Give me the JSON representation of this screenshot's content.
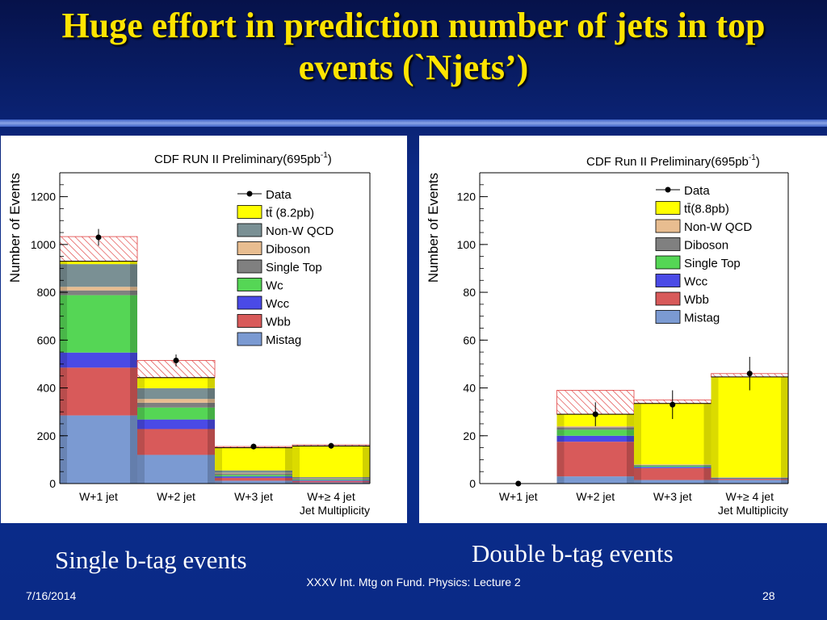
{
  "slide": {
    "title": "Huge effort in prediction number of jets in top events (`Njets’)",
    "caption_left": "Single b-tag events",
    "caption_right": "Double b-tag events",
    "footer_date": "7/16/2014",
    "footer_center": "XXXV Int. Mtg on Fund. Physics: Lecture 2",
    "page_number": "28"
  },
  "chart_data": [
    {
      "type": "bar",
      "stacked": true,
      "title": "CDF RUN II Preliminary(695pb",
      "title_superscript": "-1",
      "title_close": ")",
      "xlabel": "Jet Multiplicity",
      "ylabel": "Number of Events",
      "ylim": [
        0,
        1300
      ],
      "yticks": [
        0,
        200,
        400,
        600,
        800,
        1000,
        1200
      ],
      "categories": [
        "W+1 jet",
        "W+2 jet",
        "W+3 jet",
        "W+≥ 4 jet"
      ],
      "legend_position": "top-right",
      "legend": [
        {
          "label": "Data",
          "kind": "data"
        },
        {
          "label": "tt̄ (8.2pb)",
          "color": "#ffff00"
        },
        {
          "label": "Non-W QCD",
          "color": "#7a9094"
        },
        {
          "label": "Diboson",
          "color": "#e8bd90"
        },
        {
          "label": "Single Top",
          "color": "#808080"
        },
        {
          "label": "Wc",
          "color": "#55d655"
        },
        {
          "label": "Wcc",
          "color": "#4a4ae6"
        },
        {
          "label": "Wbb",
          "color": "#d85a5a"
        },
        {
          "label": "Mistag",
          "color": "#7b9ad2"
        }
      ],
      "series": [
        {
          "name": "Mistag",
          "color": "#7b9ad2",
          "values": [
            285,
            120,
            12,
            5
          ]
        },
        {
          "name": "Wbb",
          "color": "#d85a5a",
          "values": [
            200,
            108,
            12,
            6
          ]
        },
        {
          "name": "Wcc",
          "color": "#4a4ae6",
          "values": [
            63,
            40,
            6,
            3
          ]
        },
        {
          "name": "Wc",
          "color": "#55d655",
          "values": [
            240,
            50,
            6,
            3
          ]
        },
        {
          "name": "Single Top",
          "color": "#808080",
          "values": [
            20,
            20,
            6,
            3
          ]
        },
        {
          "name": "Diboson",
          "color": "#e8bd90",
          "values": [
            15,
            16,
            3,
            2
          ]
        },
        {
          "name": "Non-W QCD",
          "color": "#7a9094",
          "values": [
            95,
            45,
            10,
            5
          ]
        },
        {
          "name": "tt̄ (8.2pb)",
          "color": "#ffff00",
          "values": [
            12,
            44,
            95,
            130
          ]
        }
      ],
      "uncertainty_top": [
        1033,
        515,
        155,
        162
      ],
      "data_points": [
        {
          "value": 1030,
          "error": 35
        },
        {
          "value": 515,
          "error": 25
        },
        {
          "value": 155,
          "error": 12
        },
        {
          "value": 158,
          "error": 12
        }
      ]
    },
    {
      "type": "bar",
      "stacked": true,
      "title": "CDF Run II Preliminary(695pb",
      "title_superscript": "-1",
      "title_close": ")",
      "xlabel": "Jet Multiplicity",
      "ylabel": "Number of Events",
      "ylim": [
        0,
        130
      ],
      "yticks": [
        0,
        20,
        40,
        60,
        80,
        100,
        120
      ],
      "categories": [
        "W+1 jet",
        "W+2 jet",
        "W+3 jet",
        "W+≥ 4 jet"
      ],
      "legend_position": "top-right",
      "legend": [
        {
          "label": "Data",
          "kind": "data"
        },
        {
          "label": "tt̄(8.8pb)",
          "color": "#ffff00"
        },
        {
          "label": "Non-W QCD",
          "color": "#e8bd90"
        },
        {
          "label": "Diboson",
          "color": "#808080"
        },
        {
          "label": "Single Top",
          "color": "#55d655"
        },
        {
          "label": "Wcc",
          "color": "#4a4ae6"
        },
        {
          "label": "Wbb",
          "color": "#d85a5a"
        },
        {
          "label": "Mistag",
          "color": "#7b9ad2"
        }
      ],
      "series": [
        {
          "name": "Mistag",
          "color": "#7b9ad2",
          "values": [
            0,
            3,
            1.5,
            1.5
          ]
        },
        {
          "name": "Wbb",
          "color": "#d85a5a",
          "values": [
            0,
            14.5,
            5,
            0.5
          ]
        },
        {
          "name": "Wcc",
          "color": "#4a4ae6",
          "values": [
            0,
            2.5,
            0.5,
            0.2
          ]
        },
        {
          "name": "Single Top",
          "color": "#55d655",
          "values": [
            0,
            2.5,
            0.5,
            0.2
          ]
        },
        {
          "name": "Diboson",
          "color": "#808080",
          "values": [
            0,
            1,
            0.3,
            0.1
          ]
        },
        {
          "name": "Non-W QCD",
          "color": "#e8bd90",
          "values": [
            0,
            0.5,
            0.2,
            0.1
          ]
        },
        {
          "name": "tt̄(8.8pb)",
          "color": "#ffff00",
          "values": [
            0,
            5,
            25.5,
            42
          ]
        }
      ],
      "uncertainty_top": [
        0,
        39,
        35,
        46
      ],
      "data_points": [
        {
          "value": 0,
          "error": 0
        },
        {
          "value": 29,
          "error": 5
        },
        {
          "value": 33,
          "error": 6
        },
        {
          "value": 46,
          "error": 7
        }
      ]
    }
  ]
}
